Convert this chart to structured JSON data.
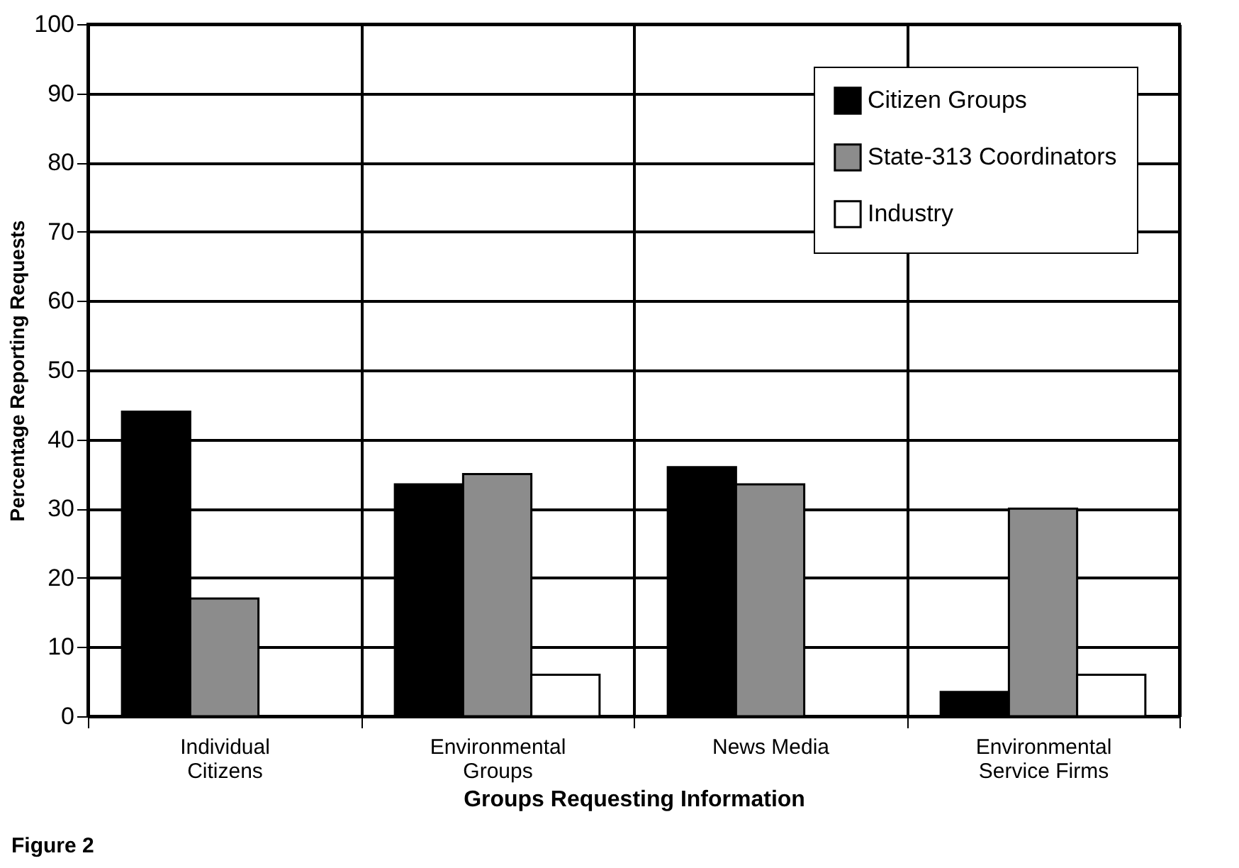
{
  "chart_data": {
    "type": "bar",
    "xlabel": "Groups Requesting Information",
    "ylabel": "Percentage Reporting Requests",
    "categories": [
      "Individual Citizens",
      "Environmental Groups",
      "News Media",
      "Environmental Service Firms"
    ],
    "series": [
      {
        "name": "Citizen Groups",
        "color": "#000000",
        "values": [
          44,
          33.5,
          36,
          3.5
        ]
      },
      {
        "name": "State-313 Coordinators",
        "color": "#8c8c8c",
        "values": [
          17,
          35,
          33.5,
          30
        ]
      },
      {
        "name": "Industry",
        "color": "#ffffff",
        "values": [
          null,
          6,
          null,
          6
        ]
      }
    ],
    "ylim": [
      0,
      100
    ],
    "yticks": [
      0,
      10,
      20,
      30,
      40,
      50,
      60,
      70,
      80,
      90,
      100
    ],
    "grid": true,
    "legend": "top right",
    "annotations": [
      "Figure 2"
    ]
  }
}
